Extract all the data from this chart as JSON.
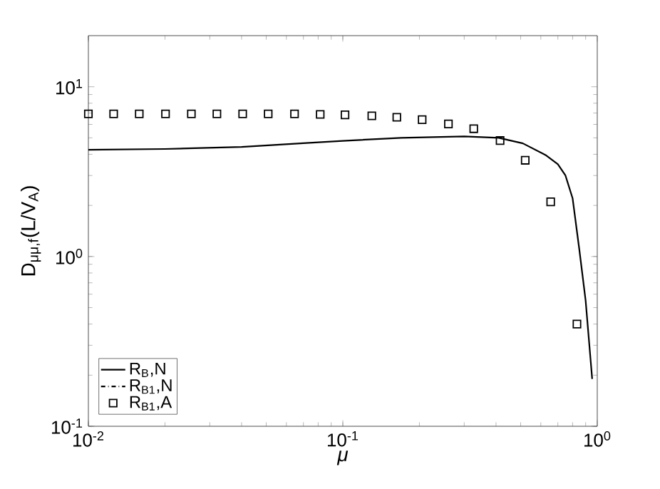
{
  "chart_data": {
    "type": "line",
    "xlabel": "*μ*",
    "ylabel": "D$_{μμ,f}$(L/V$_{A}$)",
    "log": "xy",
    "xlim": [
      0.01,
      1
    ],
    "ylim": [
      0.1,
      20
    ],
    "xticks": [
      {
        "value": 0.01,
        "label": "10$^{-2}$"
      },
      {
        "value": 0.1,
        "label": "10$^{-1}$"
      },
      {
        "value": 1,
        "label": "10$^{0}$"
      }
    ],
    "yticks": [
      {
        "value": 0.1,
        "label": "10$^{-1}$"
      },
      {
        "value": 1,
        "label": "10$^{0}$"
      },
      {
        "value": 10,
        "label": "10$^{1}$"
      }
    ],
    "grid": false,
    "legend": "bottom left",
    "series": [
      {
        "name": "R$_{B}$,N",
        "color": "#000000",
        "line_style": "solid",
        "marker": "none",
        "x": [
          0.01,
          0.02,
          0.04,
          0.07,
          0.1,
          0.17,
          0.3,
          0.41,
          0.51,
          0.63,
          0.7,
          0.75,
          0.8,
          0.85,
          0.9,
          0.955
        ],
        "values": [
          4.25,
          4.3,
          4.42,
          4.65,
          4.8,
          5.0,
          5.1,
          5.0,
          4.64,
          3.94,
          3.5,
          3.0,
          2.2,
          1.1,
          0.55,
          0.19
        ]
      },
      {
        "name": "R$_{B1}$,N",
        "color": "#000000",
        "line_style": "dashdot",
        "marker": "none",
        "values": [
          null
        ]
      },
      {
        "name": "R$_{B1}$,A",
        "color": "#000000",
        "type": "scatter",
        "marker": "square",
        "x": [
          0.01,
          0.01257,
          0.01585,
          0.0201,
          0.0254,
          0.032,
          0.0404,
          0.0509,
          0.0646,
          0.0815,
          0.102,
          0.13,
          0.163,
          0.205,
          0.26,
          0.327,
          0.415,
          0.521,
          0.656,
          0.832
        ],
        "values": [
          6.92,
          6.92,
          6.92,
          6.92,
          6.92,
          6.92,
          6.92,
          6.92,
          6.92,
          6.87,
          6.83,
          6.74,
          6.61,
          6.4,
          6.04,
          5.66,
          4.82,
          3.69,
          2.1,
          0.4
        ]
      }
    ]
  }
}
